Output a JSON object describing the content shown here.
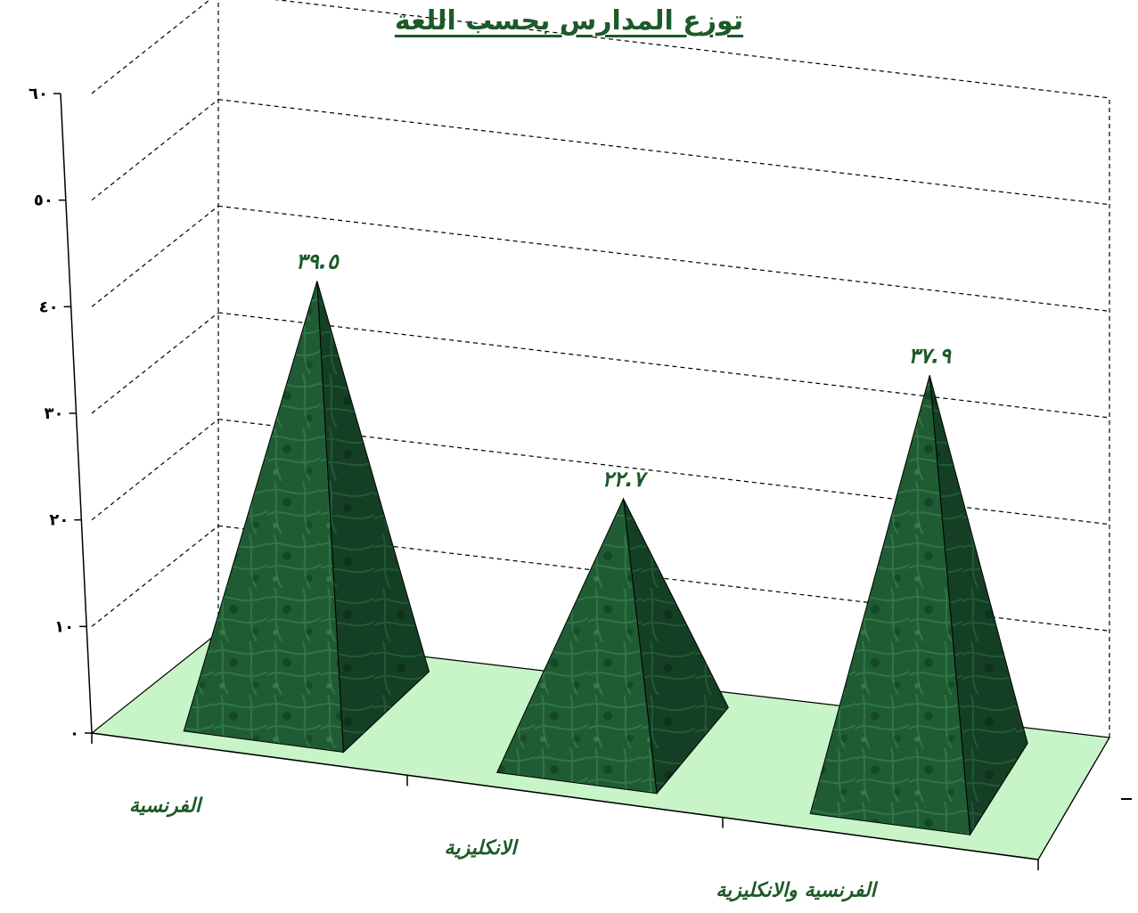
{
  "chart_data": {
    "type": "bar",
    "bar_shape": "pyramid",
    "title": "توزع المدارس بحسب اللغة",
    "categories": [
      "الفرنسية",
      "الانكليزية",
      "الفرنسية والانكليزية"
    ],
    "values": [
      39.5,
      22.7,
      37.9
    ],
    "value_labels": [
      "٣٩.٥",
      "٢٢.٧",
      "٣٧.٩"
    ],
    "yticks": [
      0,
      10,
      20,
      30,
      40,
      50,
      60
    ],
    "ytick_labels": [
      "٠",
      "١٠",
      "٢٠",
      "٣٠",
      "٤٠",
      "٥٠",
      "٦٠"
    ],
    "ylim": [
      0,
      60
    ],
    "xlabel": "",
    "ylabel": "",
    "grid": true,
    "legend": "none",
    "colors": {
      "bar": "#1e5a32",
      "bar_dark": "#123d21",
      "floor": "#c8f5c8",
      "grid": "#000000",
      "text": "#1c5a28"
    }
  }
}
